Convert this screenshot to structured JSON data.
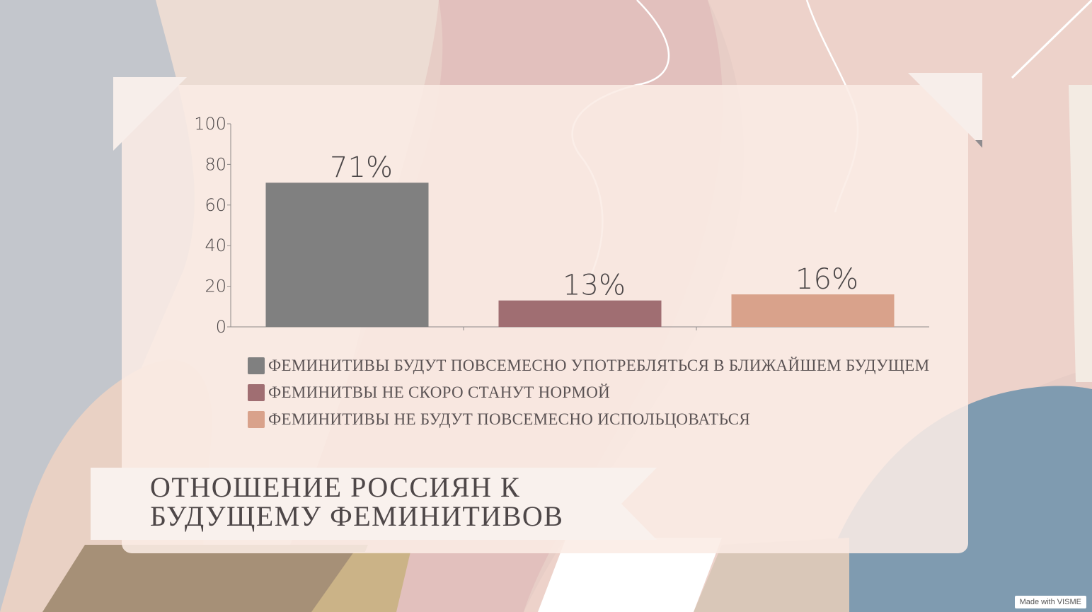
{
  "chart_data": {
    "type": "bar",
    "categories": [
      "ФЕМИНИТИВЫ БУДУТ ПОВСЕМЕСНО УПОТРЕБЛЯТЬСЯ В БЛИЖАЙШЕМ БУДУЩЕМ",
      "ФЕМИНИТВЫ НЕ СКОРО СТАНУТ НОРМОЙ",
      "ФЕМИНИТИВЫ НЕ БУДУТ ПОВСЕМЕСНО ИСПОЛЬЦОВАТЬСЯ"
    ],
    "values": [
      71,
      13,
      16
    ],
    "data_labels": [
      "71%",
      "13%",
      "16%"
    ],
    "colors": [
      "#808080",
      "#a06e72",
      "#d9a28b"
    ],
    "ylim": [
      0,
      100
    ],
    "yticks": [
      "0",
      "20",
      "40",
      "60",
      "80",
      "100"
    ],
    "grid": false,
    "legend_position": "bottom",
    "title_lines": [
      "ОТНОШЕНИЕ РОССИЯН К",
      "БУДУЩЕМУ ФЕМИНИТИВОВ"
    ]
  },
  "watermark": "Made with VISME"
}
